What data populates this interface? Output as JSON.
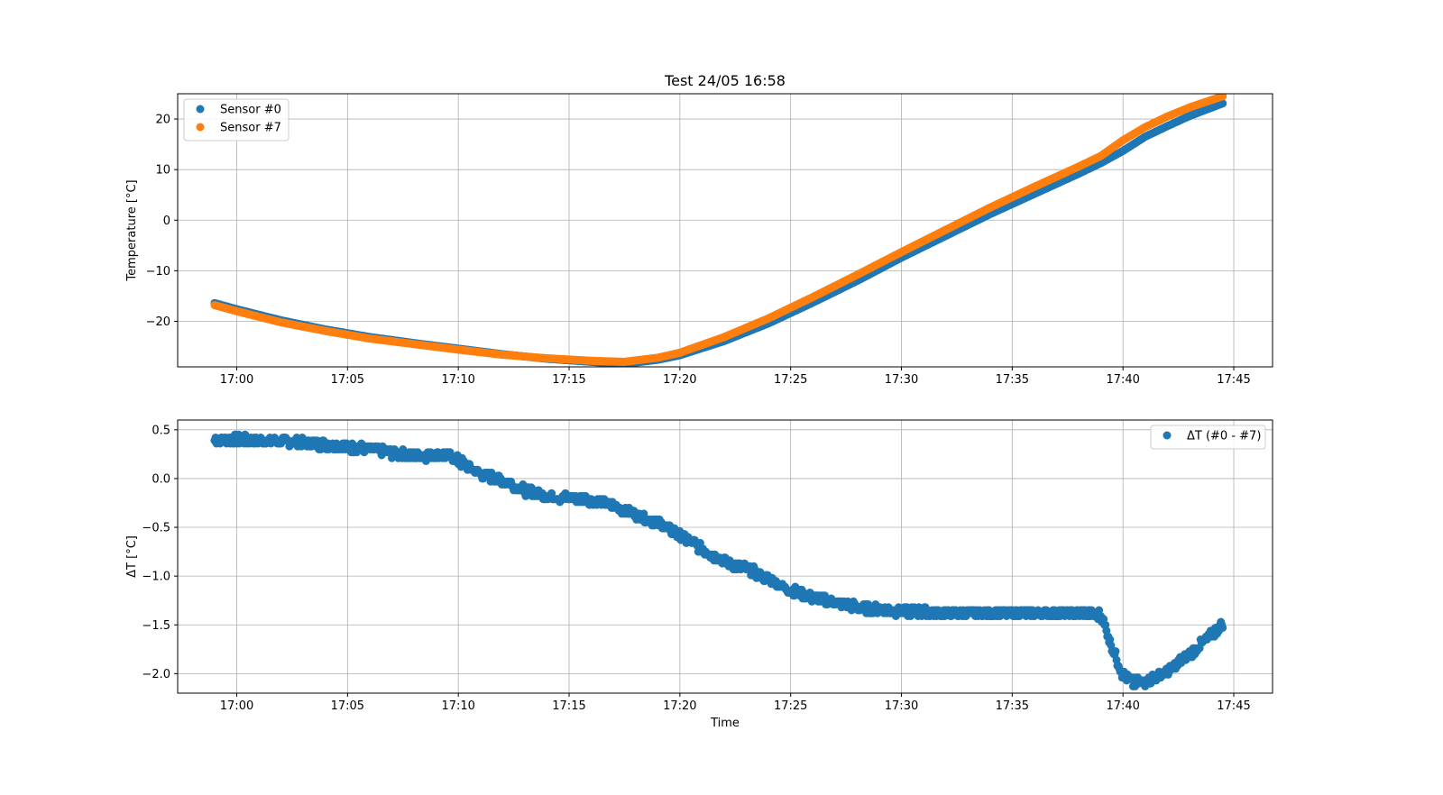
{
  "chart_data": [
    {
      "type": "scatter",
      "title": "Test 24/05 16:58",
      "xlabel": "",
      "ylabel": "Temperature [°C]",
      "x_ticks": [
        "17:00",
        "17:05",
        "17:10",
        "17:15",
        "17:20",
        "17:25",
        "17:30",
        "17:35",
        "17:40",
        "17:45"
      ],
      "xlim": [
        "16:57:20",
        "17:46:45"
      ],
      "ylim": [
        -29,
        25
      ],
      "y_ticks": [
        20,
        10,
        0,
        -10,
        -20
      ],
      "grid": true,
      "legend_position": "top-left",
      "series": [
        {
          "name": "Sensor #0",
          "color": "#1f77b4",
          "points": [
            [
              "16:59:00",
              -16.4
            ],
            [
              "17:00:00",
              -17.6
            ],
            [
              "17:02:00",
              -19.8
            ],
            [
              "17:04:00",
              -21.6
            ],
            [
              "17:06:00",
              -23.1
            ],
            [
              "17:08:00",
              -24.3
            ],
            [
              "17:10:00",
              -25.4
            ],
            [
              "17:12:00",
              -26.5
            ],
            [
              "17:14:00",
              -27.4
            ],
            [
              "17:16:00",
              -28.0
            ],
            [
              "17:17:30",
              -28.4
            ],
            [
              "17:19:00",
              -27.6
            ],
            [
              "17:20:00",
              -26.7
            ],
            [
              "17:22:00",
              -23.9
            ],
            [
              "17:24:00",
              -20.4
            ],
            [
              "17:26:00",
              -16.3
            ],
            [
              "17:28:00",
              -12.0
            ],
            [
              "17:30:00",
              -7.4
            ],
            [
              "17:32:00",
              -3.1
            ],
            [
              "17:34:00",
              1.2
            ],
            [
              "17:36:00",
              5.2
            ],
            [
              "17:38:00",
              9.2
            ],
            [
              "17:39:00",
              11.3
            ],
            [
              "17:40:00",
              13.7
            ],
            [
              "17:41:00",
              16.5
            ],
            [
              "17:42:00",
              18.6
            ],
            [
              "17:43:00",
              20.6
            ],
            [
              "17:44:30",
              23.1
            ]
          ]
        },
        {
          "name": "Sensor #7",
          "color": "#ff7f0e",
          "points": [
            [
              "16:59:00",
              -16.8
            ],
            [
              "17:00:00",
              -18.0
            ],
            [
              "17:02:00",
              -20.2
            ],
            [
              "17:04:00",
              -21.9
            ],
            [
              "17:06:00",
              -23.4
            ],
            [
              "17:08:00",
              -24.5
            ],
            [
              "17:10:00",
              -25.6
            ],
            [
              "17:12:00",
              -26.6
            ],
            [
              "17:14:00",
              -27.3
            ],
            [
              "17:16:00",
              -27.8
            ],
            [
              "17:17:30",
              -28.0
            ],
            [
              "17:19:00",
              -27.2
            ],
            [
              "17:20:00",
              -26.2
            ],
            [
              "17:22:00",
              -23.1
            ],
            [
              "17:24:00",
              -19.4
            ],
            [
              "17:26:00",
              -15.2
            ],
            [
              "17:28:00",
              -10.8
            ],
            [
              "17:30:00",
              -6.3
            ],
            [
              "17:32:00",
              -1.9
            ],
            [
              "17:34:00",
              2.5
            ],
            [
              "17:36:00",
              6.6
            ],
            [
              "17:38:00",
              10.6
            ],
            [
              "17:39:00",
              12.7
            ],
            [
              "17:40:00",
              15.8
            ],
            [
              "17:41:00",
              18.4
            ],
            [
              "17:42:00",
              20.5
            ],
            [
              "17:43:00",
              22.3
            ],
            [
              "17:44:30",
              24.5
            ]
          ]
        }
      ]
    },
    {
      "type": "scatter",
      "title": "",
      "xlabel": "Time",
      "ylabel": "ΔT [°C]",
      "x_ticks": [
        "17:00",
        "17:05",
        "17:10",
        "17:15",
        "17:20",
        "17:25",
        "17:30",
        "17:35",
        "17:40",
        "17:45"
      ],
      "xlim": [
        "16:57:20",
        "17:46:45"
      ],
      "ylim": [
        -2.2,
        0.6
      ],
      "y_ticks": [
        0.5,
        0.0,
        -0.5,
        -1.0,
        -1.5,
        -2.0
      ],
      "y_tick_labels": [
        "0.5",
        "0.0",
        "−0.5",
        "−1.0",
        "−1.5",
        "−2.0"
      ],
      "grid": true,
      "legend_position": "top-right",
      "series": [
        {
          "name": "ΔT (#0 - #7)",
          "color": "#1f77b4",
          "points": [
            [
              "16:59:00",
              0.4
            ],
            [
              "17:00:00",
              0.4
            ],
            [
              "17:02:00",
              0.38
            ],
            [
              "17:04:00",
              0.35
            ],
            [
              "17:06:00",
              0.3
            ],
            [
              "17:08:00",
              0.23
            ],
            [
              "17:09:30",
              0.25
            ],
            [
              "17:10:00",
              0.18
            ],
            [
              "17:11:00",
              0.05
            ],
            [
              "17:12:00",
              -0.02
            ],
            [
              "17:13:00",
              -0.12
            ],
            [
              "17:14:00",
              -0.18
            ],
            [
              "17:15:00",
              -0.2
            ],
            [
              "17:16:00",
              -0.22
            ],
            [
              "17:17:00",
              -0.28
            ],
            [
              "17:18:00",
              -0.37
            ],
            [
              "17:19:00",
              -0.45
            ],
            [
              "17:20:00",
              -0.58
            ],
            [
              "17:21:00",
              -0.72
            ],
            [
              "17:22:00",
              -0.85
            ],
            [
              "17:23:00",
              -0.92
            ],
            [
              "17:24:00",
              -1.03
            ],
            [
              "17:25:00",
              -1.15
            ],
            [
              "17:26:00",
              -1.22
            ],
            [
              "17:27:00",
              -1.27
            ],
            [
              "17:28:00",
              -1.32
            ],
            [
              "17:30:00",
              -1.36
            ],
            [
              "17:32:00",
              -1.38
            ],
            [
              "17:34:00",
              -1.38
            ],
            [
              "17:36:00",
              -1.38
            ],
            [
              "17:38:00",
              -1.38
            ],
            [
              "17:39:00",
              -1.4
            ],
            [
              "17:39:30",
              -1.72
            ],
            [
              "17:40:00",
              -2.02
            ],
            [
              "17:40:30",
              -2.1
            ],
            [
              "17:41:00",
              -2.08
            ],
            [
              "17:42:00",
              -1.98
            ],
            [
              "17:43:00",
              -1.8
            ],
            [
              "17:44:00",
              -1.6
            ],
            [
              "17:44:30",
              -1.48
            ]
          ]
        }
      ]
    }
  ]
}
